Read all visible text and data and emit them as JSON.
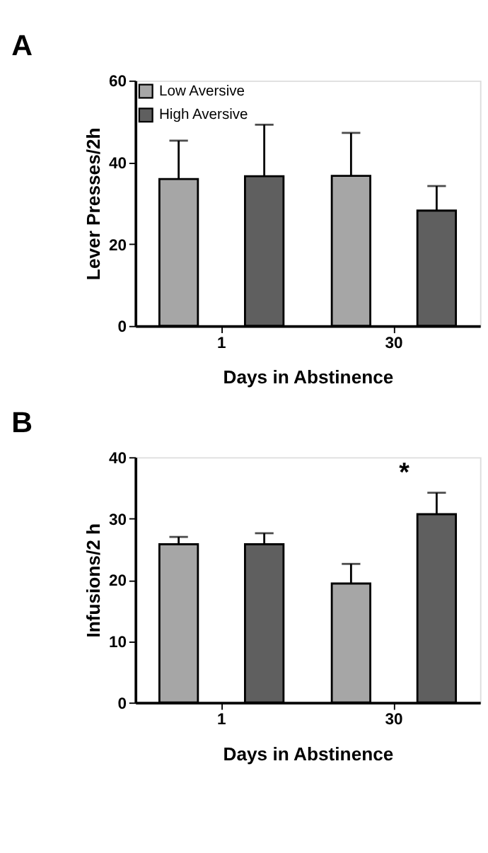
{
  "chart_data": [
    {
      "type": "bar",
      "title": "A",
      "xlabel": "Days in Abstinence",
      "ylabel": "Lever Presses/2h",
      "categories": [
        "1",
        "30"
      ],
      "series": [
        {
          "name": "Low Aversive",
          "color": "#a6a6a6",
          "values": [
            35.9,
            36.7
          ],
          "errors": [
            9.4,
            10.5
          ]
        },
        {
          "name": "High Aversive",
          "color": "#5f5f5f",
          "values": [
            36.6,
            28.2
          ],
          "errors": [
            12.6,
            6.0
          ]
        }
      ],
      "ylim": [
        0,
        60
      ],
      "yticks": [
        0,
        20,
        40,
        60
      ],
      "grid": false,
      "legend": "top left"
    },
    {
      "type": "bar",
      "title": "B",
      "xlabel": "Days in Abstinence",
      "ylabel": "Infusions/2 h",
      "categories": [
        "1",
        "30"
      ],
      "series": [
        {
          "name": "Low Aversive",
          "color": "#a6a6a6",
          "values": [
            25.8,
            19.4
          ],
          "errors": [
            1.2,
            3.2
          ]
        },
        {
          "name": "High Aversive",
          "color": "#5f5f5f",
          "values": [
            25.8,
            30.7
          ],
          "errors": [
            1.8,
            3.5
          ]
        }
      ],
      "ylim": [
        0,
        40
      ],
      "yticks": [
        0,
        10,
        20,
        30,
        40
      ],
      "grid": false,
      "legend": "top left",
      "annotations": [
        "*"
      ]
    }
  ]
}
